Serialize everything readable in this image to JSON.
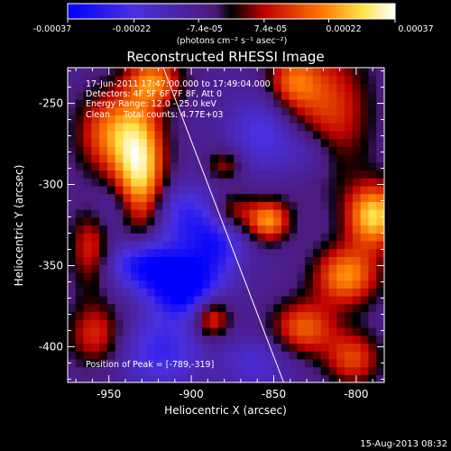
{
  "chart_data": {
    "type": "heatmap",
    "title": "Reconstructed RHESSI Image",
    "xlabel": "Heliocentric X (arcsec)",
    "ylabel": "Heliocentric Y (arcsec)",
    "xlim": [
      -975,
      -783
    ],
    "ylim": [
      -422,
      -228
    ],
    "xticks": [
      -950,
      -900,
      -850,
      -800
    ],
    "yticks": [
      -250,
      -300,
      -350,
      -400
    ],
    "colorbar": {
      "ticks": [
        -0.00037,
        -0.00022,
        -7.4e-05,
        7.4e-05,
        0.00022,
        0.00037
      ],
      "tick_labels": [
        "-0.00037",
        "-0.00022",
        "-7.4e-05",
        "7.4e-05",
        "0.00022",
        "0.00037"
      ],
      "unit_label": "(photons cm⁻² s⁻¹ asec⁻²)",
      "colormap": "purple-blue-black-red-yellow-white"
    },
    "info_lines": [
      "17-Jun-2011 17:47:00.000 to 17:49:04.000",
      "Detectors: 4F 5F 6F 7F 8F, Att 0",
      "Energy Range: 12.0 - 25.0 keV",
      "Clean     Total counts: 4.77E+03"
    ],
    "peak_label": "Position of Peak = [-789,-319]",
    "peak": [
      -789,
      -319
    ],
    "limb_line": [
      [
        -917,
        -228
      ],
      [
        -844,
        -422
      ]
    ],
    "blobs": [
      {
        "x": -931,
        "y": -295,
        "amp": 0.0004,
        "sx": 11,
        "sy": 32
      },
      {
        "x": -950,
        "y": -268,
        "amp": 0.00025,
        "sx": 14,
        "sy": 18
      },
      {
        "x": -922,
        "y": -236,
        "amp": 0.00025,
        "sx": 12,
        "sy": 10
      },
      {
        "x": -961,
        "y": -338,
        "amp": 0.0002,
        "sx": 9,
        "sy": 18
      },
      {
        "x": -958,
        "y": -392,
        "amp": 0.0002,
        "sx": 12,
        "sy": 14
      },
      {
        "x": -888,
        "y": -382,
        "amp": 0.00025,
        "sx": 8,
        "sy": 9
      },
      {
        "x": -876,
        "y": -317,
        "amp": 0.0002,
        "sx": 10,
        "sy": 9
      },
      {
        "x": -853,
        "y": -322,
        "amp": 0.0003,
        "sx": 9,
        "sy": 9
      },
      {
        "x": -880,
        "y": -288,
        "amp": 0.00015,
        "sx": 8,
        "sy": 7
      },
      {
        "x": -817,
        "y": -255,
        "amp": 0.00022,
        "sx": 18,
        "sy": 30
      },
      {
        "x": -789,
        "y": -319,
        "amp": 0.00037,
        "sx": 12,
        "sy": 14
      },
      {
        "x": -806,
        "y": -356,
        "amp": 0.0003,
        "sx": 14,
        "sy": 13
      },
      {
        "x": -832,
        "y": -388,
        "amp": 0.00025,
        "sx": 14,
        "sy": 12
      },
      {
        "x": -802,
        "y": -407,
        "amp": 0.00022,
        "sx": 12,
        "sy": 12
      },
      {
        "x": -839,
        "y": -236,
        "amp": 0.0002,
        "sx": 11,
        "sy": 12
      },
      {
        "x": -930,
        "y": -348,
        "amp": -0.00032,
        "sx": 14,
        "sy": 12
      },
      {
        "x": -905,
        "y": -362,
        "amp": -0.00035,
        "sx": 14,
        "sy": 13
      },
      {
        "x": -885,
        "y": -335,
        "amp": -0.00022,
        "sx": 12,
        "sy": 15
      },
      {
        "x": -908,
        "y": -318,
        "amp": -0.00018,
        "sx": 16,
        "sy": 14
      },
      {
        "x": -945,
        "y": -315,
        "amp": -0.00012,
        "sx": 12,
        "sy": 12
      },
      {
        "x": -856,
        "y": -268,
        "amp": -0.00016,
        "sx": 14,
        "sy": 16
      },
      {
        "x": -828,
        "y": -280,
        "amp": -0.00014,
        "sx": 12,
        "sy": 12
      },
      {
        "x": -918,
        "y": -402,
        "amp": -0.00018,
        "sx": 18,
        "sy": 16
      },
      {
        "x": -860,
        "y": -410,
        "amp": -0.00012,
        "sx": 14,
        "sy": 12
      }
    ]
  },
  "footer": {
    "date": "15-Aug-2013 08:32"
  },
  "colors": {
    "background": "#000000",
    "text": "#ffffff",
    "limb": "#ffffff"
  }
}
